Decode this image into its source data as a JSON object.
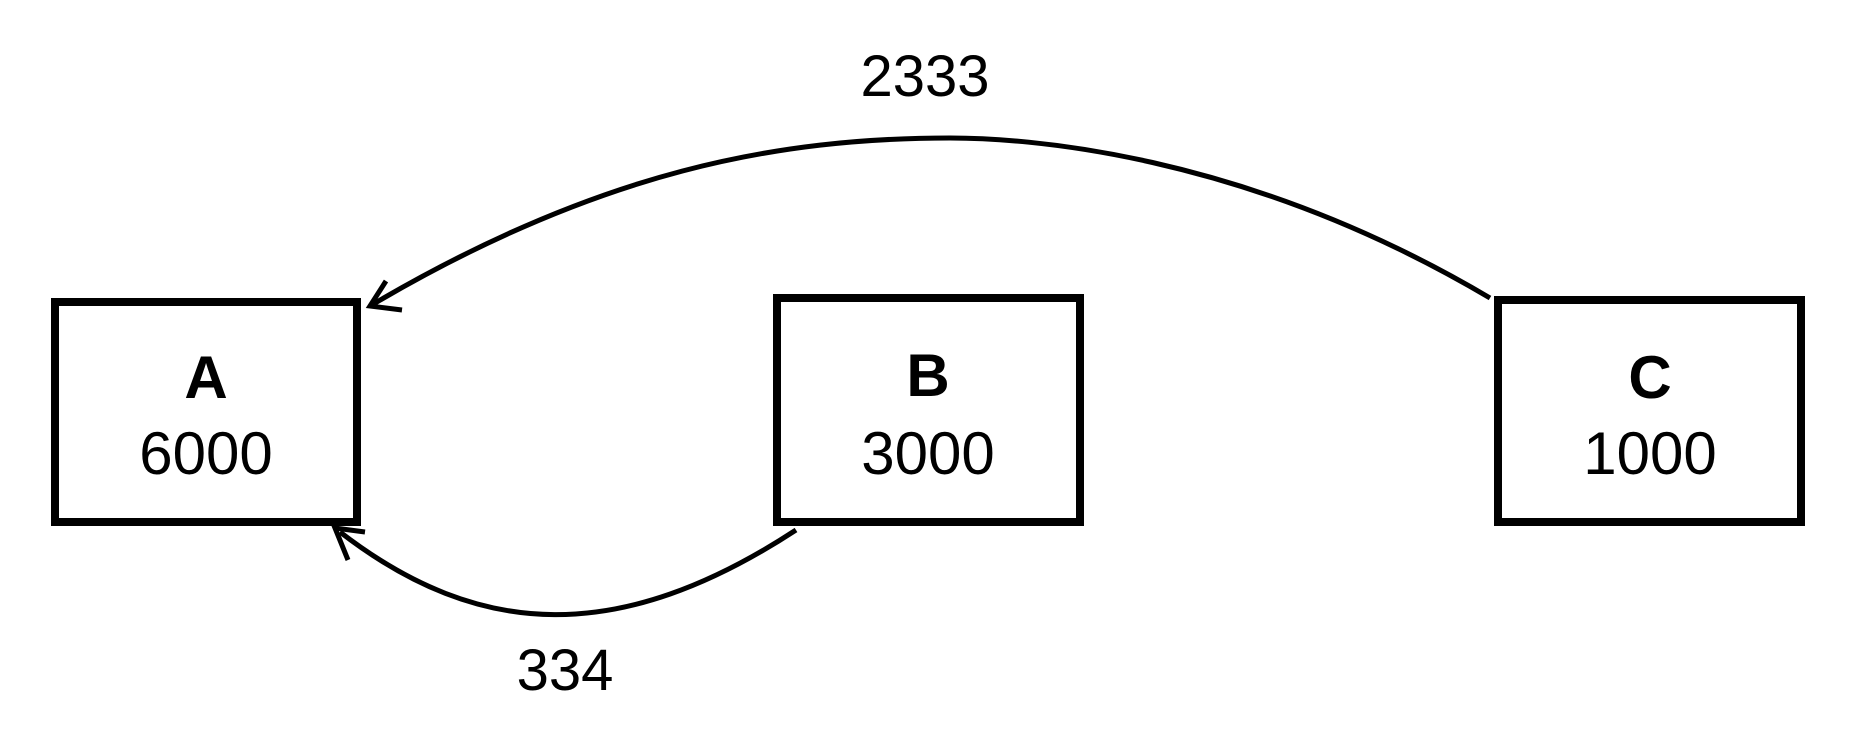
{
  "nodes": [
    {
      "id": "A",
      "title": "A",
      "value": "6000"
    },
    {
      "id": "B",
      "title": "B",
      "value": "3000"
    },
    {
      "id": "C",
      "title": "C",
      "value": "1000"
    }
  ],
  "edges": [
    {
      "from": "C",
      "to": "A",
      "label": "2333"
    },
    {
      "from": "B",
      "to": "A",
      "label": "334"
    }
  ]
}
